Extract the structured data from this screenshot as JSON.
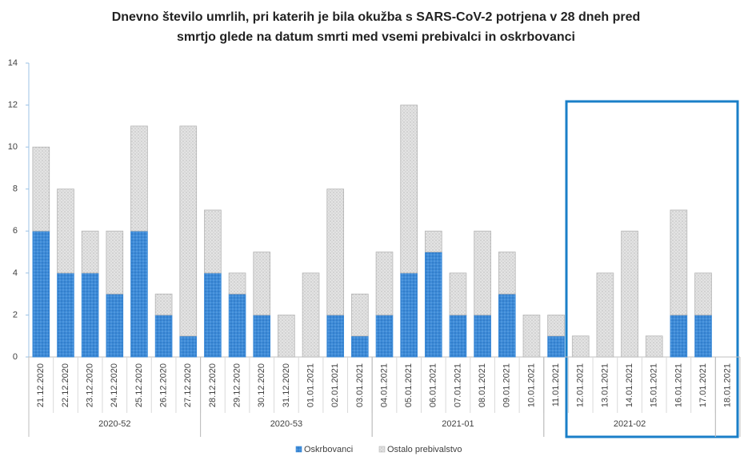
{
  "chart_data": {
    "type": "stacked_bar",
    "title": "Dnevno število umrlih, pri katerih je bila okužba s SARS-CoV-2 potrjena v 28 dneh pred",
    "subtitle": "smrtjo glede na datum smrti med vsemi prebivalci in oskrbovanci",
    "categories": [
      "21.12.2020",
      "22.12.2020",
      "23.12.2020",
      "24.12.2020",
      "25.12.2020",
      "26.12.2020",
      "27.12.2020",
      "28.12.2020",
      "29.12.2020",
      "30.12.2020",
      "31.12.2020",
      "01.01.2021",
      "02.01.2021",
      "03.01.2021",
      "04.01.2021",
      "05.01.2021",
      "06.01.2021",
      "07.01.2021",
      "08.01.2021",
      "09.01.2021",
      "10.01.2021",
      "11.01.2021",
      "12.01.2021",
      "13.01.2021",
      "14.01.2021",
      "15.01.2021",
      "16.01.2021",
      "17.01.2021",
      "18.01.2021"
    ],
    "groups": [
      {
        "label": "2020-52",
        "count": 7
      },
      {
        "label": "2020-53",
        "count": 7
      },
      {
        "label": "2021-01",
        "count": 7
      },
      {
        "label": "2021-02",
        "count": 7
      },
      {
        "label": null,
        "count": 1
      }
    ],
    "series": [
      {
        "name": "Oskrbovanci",
        "color": "#3d8bd8",
        "values": [
          6,
          4,
          4,
          3,
          6,
          2,
          1,
          4,
          3,
          2,
          0,
          0,
          2,
          1,
          2,
          4,
          5,
          2,
          2,
          3,
          0,
          1,
          0,
          0,
          0,
          0,
          2,
          2,
          0
        ]
      },
      {
        "name": "Ostalo prebivalstvo",
        "color": "#e3e3e3",
        "values": [
          4,
          4,
          2,
          3,
          5,
          1,
          10,
          3,
          1,
          3,
          2,
          4,
          6,
          2,
          3,
          8,
          1,
          2,
          4,
          2,
          2,
          1,
          1,
          4,
          6,
          1,
          5,
          2,
          0
        ]
      }
    ],
    "ylim": [
      0,
      14
    ],
    "yticks": [
      0,
      2,
      4,
      6,
      8,
      10,
      12,
      14
    ],
    "grid": false,
    "legend": "bottom"
  }
}
